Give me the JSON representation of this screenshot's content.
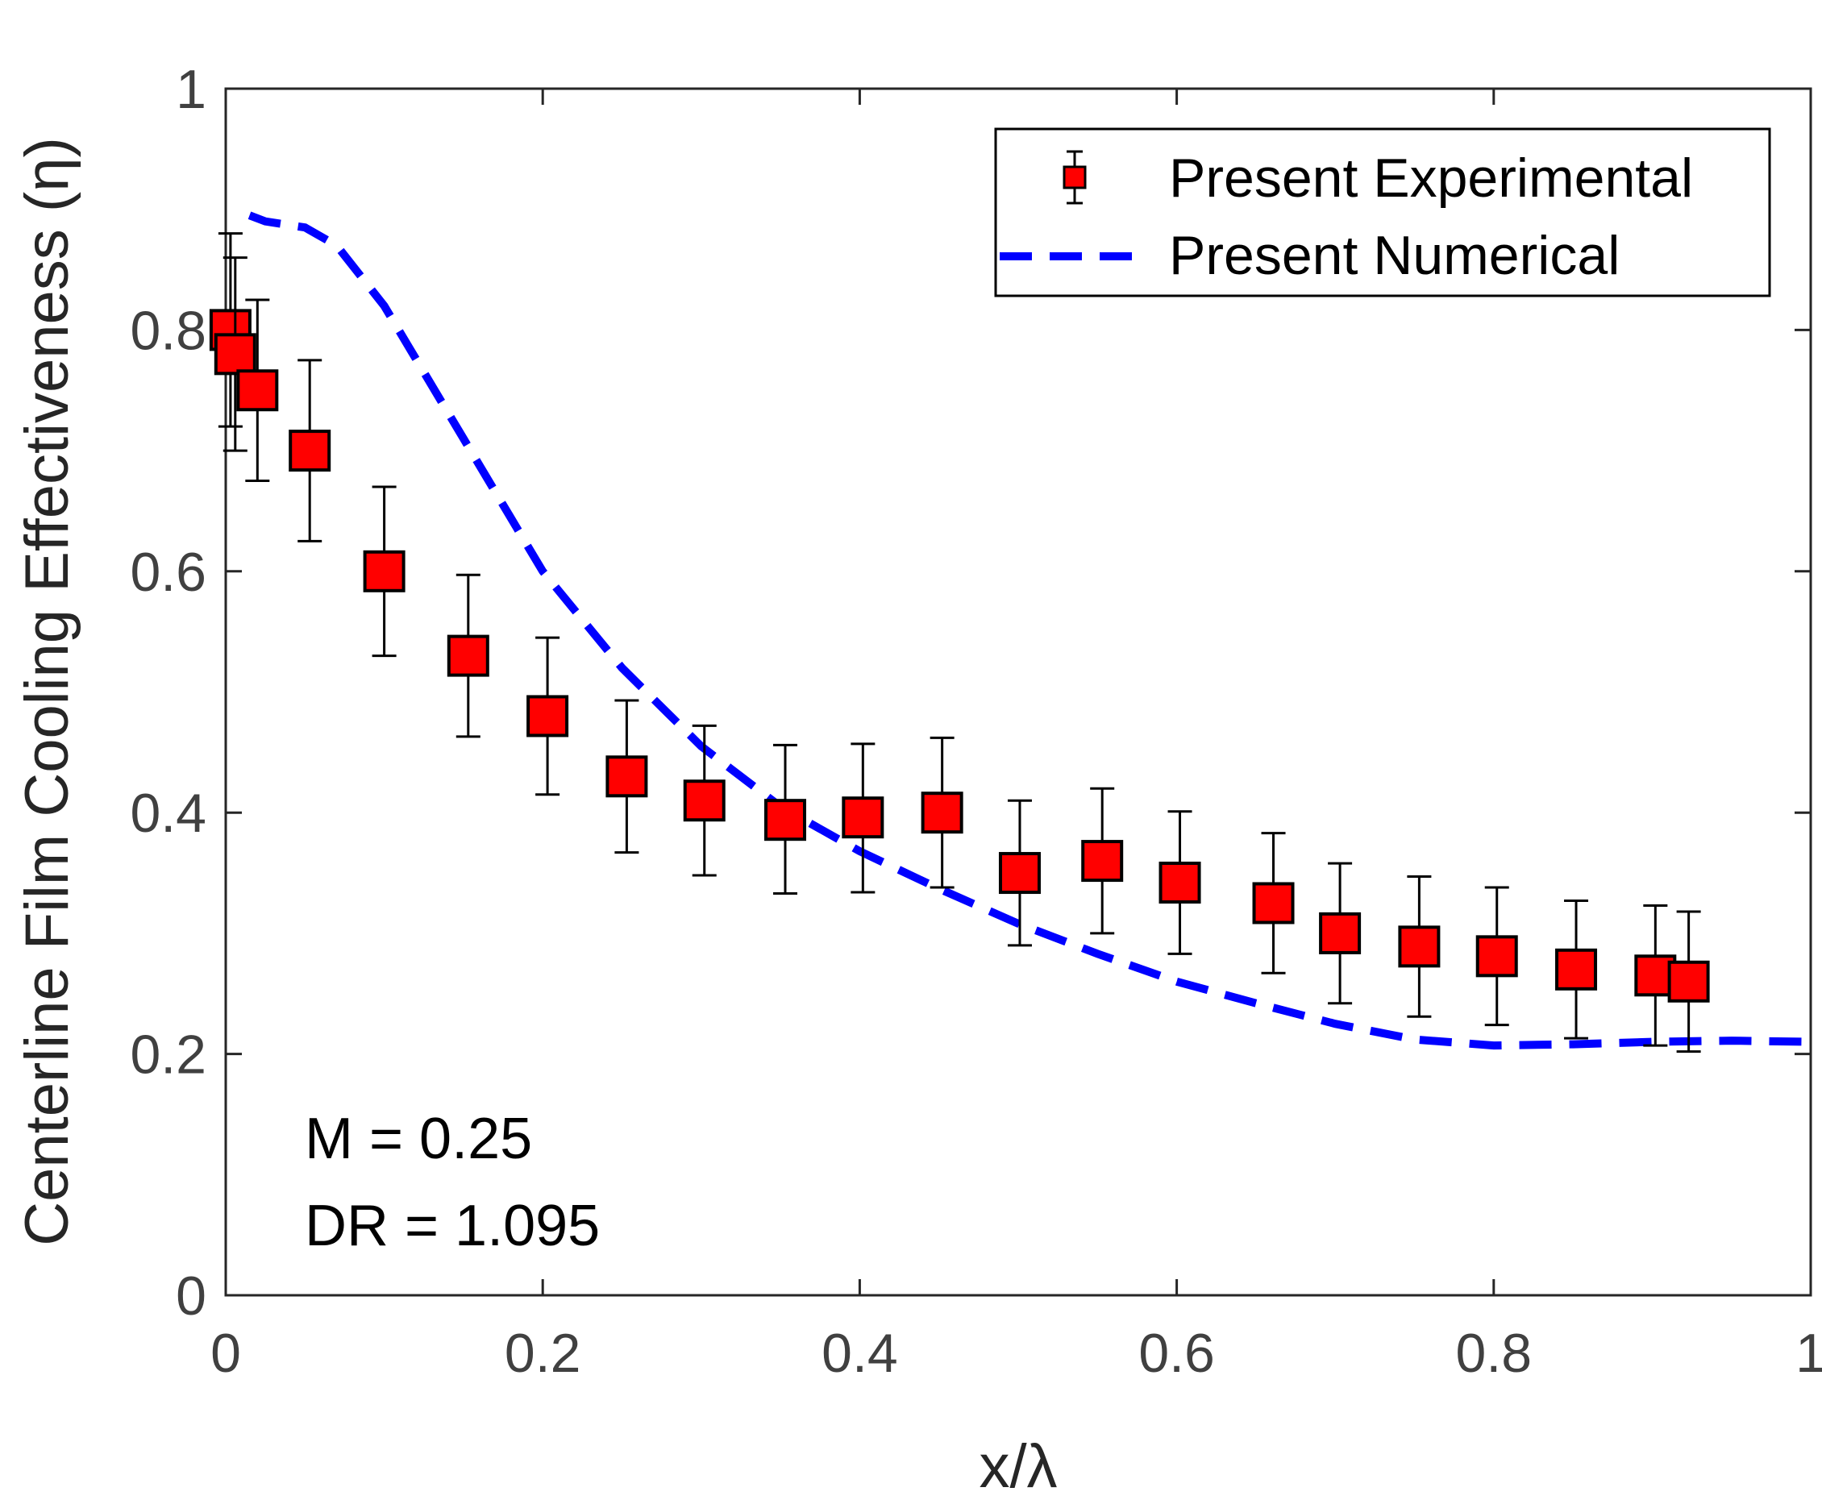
{
  "chart_data": {
    "type": "scatter",
    "xlabel": "x/λ",
    "ylabel": "Centerline Film Cooling Effectiveness (η)",
    "xlim": [
      0,
      1
    ],
    "ylim": [
      0,
      1
    ],
    "x_ticks": [
      "0",
      "0.2",
      "0.4",
      "0.6",
      "0.8",
      "1"
    ],
    "y_ticks": [
      "0",
      "0.2",
      "0.4",
      "0.6",
      "0.8",
      "1"
    ],
    "grid": false,
    "legend_position": "top-right",
    "series": [
      {
        "name": "Present Experimental",
        "kind": "errorbar",
        "color": "#ff0000",
        "points": [
          {
            "x": 0.003,
            "y": 0.8,
            "lo": 0.72,
            "hi": 0.88
          },
          {
            "x": 0.006,
            "y": 0.78,
            "lo": 0.7,
            "hi": 0.86
          },
          {
            "x": 0.02,
            "y": 0.75,
            "lo": 0.675,
            "hi": 0.825
          },
          {
            "x": 0.053,
            "y": 0.7,
            "lo": 0.625,
            "hi": 0.775
          },
          {
            "x": 0.1,
            "y": 0.6,
            "lo": 0.53,
            "hi": 0.67
          },
          {
            "x": 0.153,
            "y": 0.53,
            "lo": 0.463,
            "hi": 0.597
          },
          {
            "x": 0.203,
            "y": 0.48,
            "lo": 0.415,
            "hi": 0.545
          },
          {
            "x": 0.253,
            "y": 0.43,
            "lo": 0.367,
            "hi": 0.493
          },
          {
            "x": 0.302,
            "y": 0.41,
            "lo": 0.348,
            "hi": 0.472
          },
          {
            "x": 0.353,
            "y": 0.394,
            "lo": 0.333,
            "hi": 0.456
          },
          {
            "x": 0.402,
            "y": 0.396,
            "lo": 0.334,
            "hi": 0.457
          },
          {
            "x": 0.452,
            "y": 0.4,
            "lo": 0.338,
            "hi": 0.462
          },
          {
            "x": 0.501,
            "y": 0.35,
            "lo": 0.29,
            "hi": 0.41
          },
          {
            "x": 0.553,
            "y": 0.36,
            "lo": 0.3,
            "hi": 0.42
          },
          {
            "x": 0.602,
            "y": 0.342,
            "lo": 0.283,
            "hi": 0.401
          },
          {
            "x": 0.661,
            "y": 0.325,
            "lo": 0.267,
            "hi": 0.383
          },
          {
            "x": 0.703,
            "y": 0.3,
            "lo": 0.242,
            "hi": 0.358
          },
          {
            "x": 0.753,
            "y": 0.289,
            "lo": 0.231,
            "hi": 0.347
          },
          {
            "x": 0.802,
            "y": 0.281,
            "lo": 0.224,
            "hi": 0.338
          },
          {
            "x": 0.852,
            "y": 0.27,
            "lo": 0.213,
            "hi": 0.327
          },
          {
            "x": 0.902,
            "y": 0.265,
            "lo": 0.207,
            "hi": 0.323
          },
          {
            "x": 0.923,
            "y": 0.26,
            "lo": 0.202,
            "hi": 0.318
          }
        ]
      },
      {
        "name": "Present Numerical",
        "kind": "line",
        "color": "#0000ff",
        "dash": true,
        "x": [
          0.015,
          0.025,
          0.05,
          0.07,
          0.1,
          0.15,
          0.2,
          0.25,
          0.3,
          0.35,
          0.4,
          0.45,
          0.5,
          0.55,
          0.6,
          0.65,
          0.7,
          0.75,
          0.8,
          0.85,
          0.9,
          0.95,
          1.0
        ],
        "y": [
          0.895,
          0.89,
          0.885,
          0.87,
          0.82,
          0.71,
          0.6,
          0.52,
          0.455,
          0.405,
          0.368,
          0.337,
          0.308,
          0.283,
          0.26,
          0.242,
          0.225,
          0.212,
          0.207,
          0.208,
          0.21,
          0.211,
          0.21
        ]
      }
    ],
    "annotations": [
      "M = 0.25",
      "DR = 1.095"
    ]
  }
}
